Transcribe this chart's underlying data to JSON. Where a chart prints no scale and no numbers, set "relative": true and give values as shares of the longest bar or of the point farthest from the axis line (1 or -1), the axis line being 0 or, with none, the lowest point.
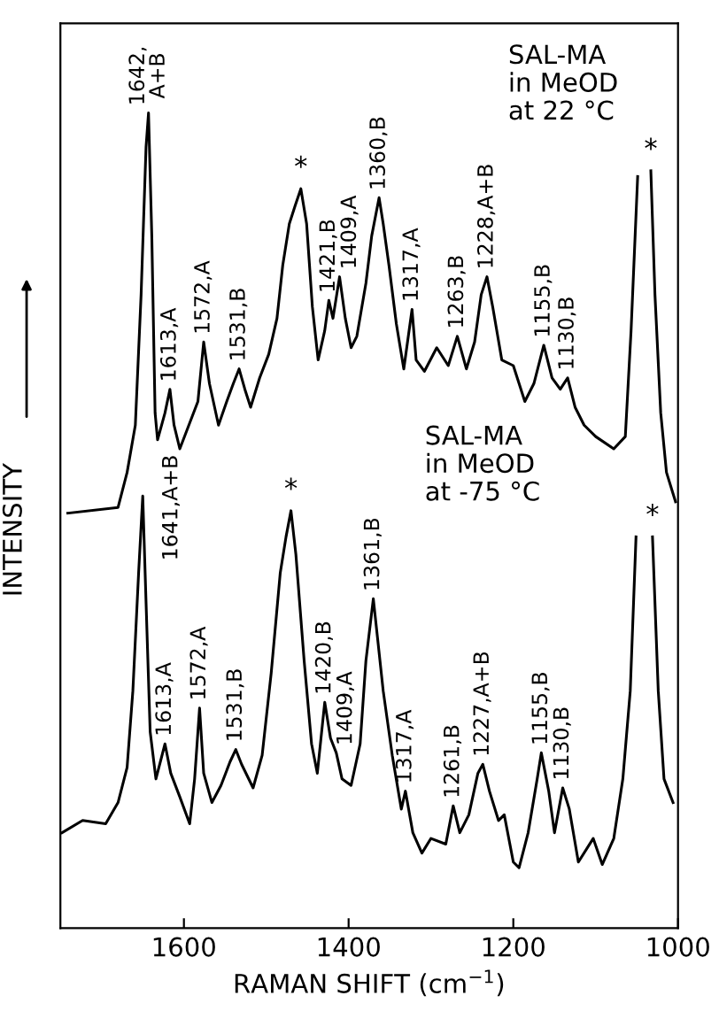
{
  "chart_data": {
    "type": "line",
    "relative": true,
    "xlabel": "RAMAN SHIFT (cm$^{−1}$)",
    "ylabel": "INTENSITY",
    "xlim": [
      1750,
      1000
    ],
    "xticks": [
      1600,
      1400,
      1200,
      1000
    ],
    "series": [
      {
        "color": "#000000",
        "x": [
          1741,
          1680,
          1669,
          1659,
          1652,
          1646,
          1643,
          1639,
          1635,
          1632,
          1623,
          1617,
          1612,
          1605,
          1594,
          1583,
          1576,
          1569,
          1558,
          1548,
          1540,
          1533,
          1526,
          1519,
          1508,
          1497,
          1487,
          1480,
          1472,
          1465,
          1458,
          1451,
          1444,
          1437,
          1429,
          1424,
          1419,
          1411,
          1404,
          1397,
          1390,
          1379,
          1372,
          1363,
          1358,
          1351,
          1342,
          1333,
          1323,
          1318,
          1308,
          1293,
          1279,
          1268,
          1257,
          1247,
          1239,
          1232,
          1225,
          1214,
          1200,
          1186,
          1175,
          1163,
          1153,
          1143,
          1134,
          1125,
          1114,
          1100,
          1078,
          1064,
          1057,
          1049,
          1041,
          1033,
          1028,
          1021,
          1014,
          1003
        ],
        "values": [
          0.509,
          0.516,
          0.559,
          0.617,
          0.777,
          0.958,
          1.0,
          0.849,
          0.632,
          0.599,
          0.632,
          0.661,
          0.617,
          0.588,
          0.617,
          0.646,
          0.719,
          0.668,
          0.617,
          0.646,
          0.668,
          0.686,
          0.661,
          0.639,
          0.675,
          0.704,
          0.748,
          0.813,
          0.864,
          0.886,
          0.907,
          0.864,
          0.762,
          0.697,
          0.733,
          0.77,
          0.748,
          0.799,
          0.748,
          0.712,
          0.726,
          0.791,
          0.849,
          0.896,
          0.864,
          0.813,
          0.741,
          0.686,
          0.759,
          0.697,
          0.683,
          0.712,
          0.69,
          0.726,
          0.686,
          0.719,
          0.777,
          0.799,
          0.762,
          0.697,
          0.69,
          0.646,
          0.668,
          0.715,
          0.675,
          0.661,
          0.675,
          0.639,
          0.617,
          0.603,
          0.588,
          0.603,
          0.733,
          0.922,
          null,
          0.929,
          0.777,
          0.632,
          0.559,
          0.523
        ]
      },
      {
        "color": "#000000",
        "x": [
          1748,
          1723,
          1695,
          1680,
          1669,
          1662,
          1655,
          1650,
          1646,
          1641,
          1634,
          1623,
          1616,
          1605,
          1593,
          1587,
          1581,
          1576,
          1566,
          1555,
          1544,
          1537,
          1530,
          1516,
          1505,
          1494,
          1483,
          1476,
          1470,
          1464,
          1454,
          1445,
          1438,
          1429,
          1422,
          1415,
          1408,
          1397,
          1386,
          1379,
          1370,
          1365,
          1358,
          1347,
          1336,
          1331,
          1322,
          1311,
          1300,
          1282,
          1273,
          1265,
          1254,
          1243,
          1237,
          1229,
          1218,
          1211,
          1200,
          1193,
          1182,
          1171,
          1166,
          1157,
          1150,
          1140,
          1132,
          1121,
          1103,
          1092,
          1078,
          1067,
          1058,
          1051,
          1041,
          1031,
          1024,
          1017,
          1006
        ],
        "values": [
          0.117,
          0.132,
          0.128,
          0.154,
          0.197,
          0.291,
          0.436,
          0.53,
          0.4,
          0.241,
          0.183,
          0.226,
          0.19,
          0.161,
          0.128,
          0.183,
          0.27,
          0.19,
          0.154,
          0.175,
          0.204,
          0.219,
          0.201,
          0.172,
          0.212,
          0.313,
          0.436,
          0.48,
          0.512,
          0.458,
          0.328,
          0.226,
          0.19,
          0.277,
          0.233,
          0.215,
          0.183,
          0.175,
          0.226,
          0.328,
          0.404,
          0.357,
          0.291,
          0.212,
          0.146,
          0.168,
          0.117,
          0.092,
          0.11,
          0.103,
          0.15,
          0.117,
          0.139,
          0.19,
          0.201,
          0.168,
          0.132,
          0.139,
          0.081,
          0.074,
          0.117,
          0.183,
          0.215,
          0.168,
          0.117,
          0.172,
          0.146,
          0.081,
          0.11,
          0.078,
          0.11,
          0.183,
          0.291,
          0.48,
          null,
          0.48,
          0.291,
          0.183,
          0.154
        ]
      }
    ],
    "annotations": [
      "SAL-MA\nin MeOD\nat 22 °C",
      "SAL-MA\nin MeOD\nat -75 °C",
      "1641,A+B",
      {
        "text": "1642,\nA+B",
        "x": 1643,
        "y": 1.0
      },
      {
        "text": "1613,A",
        "x": 1617,
        "y": 0.661
      },
      {
        "text": "1572,A",
        "x": 1576,
        "y": 0.719
      },
      {
        "text": "1531,B",
        "x": 1533,
        "y": 0.686
      },
      {
        "text": "*",
        "x": 1458,
        "y": 0.907
      },
      {
        "text": "1421,B",
        "x": 1424,
        "y": 0.77
      },
      {
        "text": "1409,A",
        "x": 1411,
        "y": 0.799
      },
      {
        "text": "1360,B",
        "x": 1363,
        "y": 0.896
      },
      {
        "text": "1317,A",
        "x": 1323,
        "y": 0.759
      },
      {
        "text": "1263,B",
        "x": 1268,
        "y": 0.726
      },
      {
        "text": "1228,A+B",
        "x": 1232,
        "y": 0.799
      },
      {
        "text": "1155,B",
        "x": 1163,
        "y": 0.715
      },
      {
        "text": "1130,B",
        "x": 1134,
        "y": 0.675
      },
      {
        "text": "*",
        "x": 1033,
        "y": 0.929
      },
      {
        "text": "1613,A",
        "x": 1623,
        "y": 0.226
      },
      {
        "text": "1572,A",
        "x": 1581,
        "y": 0.27
      },
      {
        "text": "1531,B",
        "x": 1537,
        "y": 0.219
      },
      {
        "text": "*",
        "x": 1470,
        "y": 0.512
      },
      {
        "text": "1420,B",
        "x": 1429,
        "y": 0.277
      },
      {
        "text": "1409,A",
        "x": 1415,
        "y": 0.215
      },
      {
        "text": "1361,B",
        "x": 1370,
        "y": 0.404
      },
      {
        "text": "1317,A",
        "x": 1331,
        "y": 0.168
      },
      {
        "text": "1261,B",
        "x": 1273,
        "y": 0.15
      },
      {
        "text": "1227,A+B",
        "x": 1237,
        "y": 0.201
      },
      {
        "text": "1155,B",
        "x": 1166,
        "y": 0.215
      },
      {
        "text": "1130,B",
        "x": 1140,
        "y": 0.172
      },
      {
        "text": "*",
        "x": 1031,
        "y": 0.48
      }
    ]
  }
}
